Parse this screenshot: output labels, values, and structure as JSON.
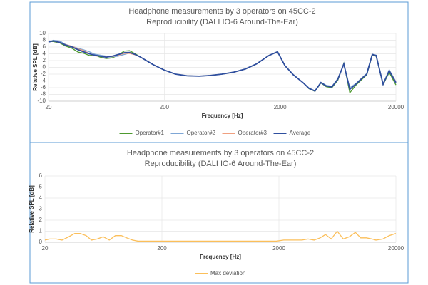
{
  "chart_data": [
    {
      "type": "line",
      "title": "Headphone measurements by 3 operators on 45CC-2",
      "subtitle": "Reproducibility (DALI IO-6 Around-The-Ear)",
      "xlabel": "Frequency [Hz]",
      "ylabel": "Relative SPL [dB]",
      "xscale": "log",
      "grid": true,
      "legend": "bottom",
      "xlim": [
        20,
        20000
      ],
      "xticks": [
        20,
        200,
        2000,
        20000
      ],
      "ylim": [
        -10,
        10
      ],
      "yticks": [
        -10,
        -8,
        -6,
        -4,
        -2,
        0,
        2,
        4,
        6,
        8,
        10
      ],
      "x": [
        20,
        22,
        25,
        28,
        32,
        36,
        40,
        45,
        50,
        56,
        63,
        71,
        80,
        90,
        100,
        112,
        125,
        160,
        200,
        250,
        315,
        400,
        500,
        630,
        800,
        1000,
        1250,
        1600,
        1900,
        2200,
        2600,
        3150,
        3550,
        4000,
        4500,
        5000,
        5600,
        6300,
        7100,
        8000,
        9000,
        10000,
        11200,
        12500,
        13500,
        15500,
        17500,
        20000
      ],
      "series": [
        {
          "name": "Operator#1",
          "color": "#4e9a2f",
          "values": [
            7.6,
            7.6,
            7.2,
            6.3,
            5.6,
            4.5,
            4.2,
            3.5,
            3.6,
            3.0,
            2.6,
            2.8,
            3.6,
            4.8,
            4.9,
            4.0,
            3.0,
            0.8,
            -0.8,
            -2.0,
            -2.5,
            -2.6,
            -2.4,
            -2.0,
            -1.4,
            -0.5,
            1.0,
            3.5,
            4.6,
            0.5,
            -2.2,
            -4.5,
            -6.3,
            -7.1,
            -4.6,
            -5.7,
            -6.0,
            -3.8,
            1.2,
            -7.5,
            -5.3,
            -3.8,
            -2.2,
            3.6,
            3.3,
            -5.1,
            -1.5,
            -5.2
          ]
        },
        {
          "name": "Operator#2",
          "color": "#7fa7d6",
          "values": [
            7.4,
            8.0,
            7.8,
            6.8,
            6.2,
            5.6,
            5.2,
            4.6,
            3.9,
            3.6,
            3.3,
            3.1,
            3.3,
            3.8,
            4.2,
            3.7,
            3.0,
            0.8,
            -0.8,
            -2.0,
            -2.5,
            -2.6,
            -2.4,
            -2.0,
            -1.4,
            -0.5,
            1.0,
            3.5,
            4.6,
            0.5,
            -2.2,
            -4.5,
            -6.1,
            -6.9,
            -4.4,
            -5.3,
            -5.6,
            -3.3,
            0.8,
            -6.0,
            -4.8,
            -3.3,
            -1.8,
            3.9,
            3.6,
            -4.9,
            -0.7,
            -4.2
          ]
        },
        {
          "name": "Operator#3",
          "color": "#f0a080",
          "values": [
            7.5,
            7.8,
            7.3,
            6.7,
            6.2,
            5.4,
            5.0,
            4.1,
            3.4,
            3.3,
            3.1,
            3.2,
            3.6,
            4.1,
            4.1,
            3.7,
            3.0,
            0.8,
            -0.8,
            -2.0,
            -2.5,
            -2.6,
            -2.4,
            -2.0,
            -1.4,
            -0.5,
            1.0,
            3.5,
            4.6,
            0.5,
            -2.2,
            -4.5,
            -6.2,
            -7.0,
            -4.5,
            -5.5,
            -5.8,
            -3.4,
            1.0,
            -6.4,
            -5.0,
            -3.4,
            -2.0,
            3.8,
            3.5,
            -5.0,
            -0.9,
            -4.3
          ]
        },
        {
          "name": "Average",
          "color": "#2f4f9f",
          "values": [
            7.5,
            7.8,
            7.4,
            6.6,
            6.0,
            5.2,
            4.6,
            4.0,
            3.6,
            3.3,
            3.0,
            3.3,
            3.8,
            4.3,
            4.4,
            3.8,
            3.0,
            0.8,
            -0.8,
            -2.0,
            -2.5,
            -2.6,
            -2.4,
            -2.0,
            -1.4,
            -0.5,
            1.0,
            3.5,
            4.6,
            0.5,
            -2.2,
            -4.5,
            -6.2,
            -7.0,
            -4.5,
            -5.5,
            -5.8,
            -3.5,
            1.0,
            -6.5,
            -5.0,
            -3.5,
            -2.0,
            3.8,
            3.5,
            -5.0,
            -1.0,
            -4.5
          ]
        }
      ]
    },
    {
      "type": "line",
      "title": "Headphone measurements by 3 operators on 45CC-2",
      "subtitle": "Reproducibility (DALI IO-6 Around-The-Ear)",
      "xlabel": "Frequency [Hz]",
      "ylabel": "Relative SPL [dB]",
      "xscale": "log",
      "grid": true,
      "legend": "bottom",
      "xlim": [
        20,
        20000
      ],
      "xticks": [
        20,
        200,
        2000,
        20000
      ],
      "ylim": [
        0,
        6
      ],
      "yticks": [
        0,
        1,
        2,
        3,
        4,
        5,
        6
      ],
      "x": [
        20,
        22,
        25,
        28,
        32,
        36,
        40,
        45,
        50,
        56,
        63,
        71,
        80,
        90,
        100,
        112,
        125,
        160,
        200,
        250,
        315,
        400,
        500,
        630,
        800,
        1000,
        1250,
        1600,
        1900,
        2200,
        2600,
        3150,
        3550,
        4000,
        4500,
        5000,
        5600,
        6300,
        7100,
        8000,
        9000,
        10000,
        11200,
        12500,
        13500,
        15500,
        17500,
        20000
      ],
      "series": [
        {
          "name": "Max deviation",
          "color": "#fbbf5a",
          "values": [
            0.2,
            0.3,
            0.3,
            0.2,
            0.5,
            0.8,
            0.8,
            0.6,
            0.2,
            0.3,
            0.5,
            0.2,
            0.6,
            0.6,
            0.4,
            0.2,
            0.1,
            0.1,
            0.1,
            0.1,
            0.1,
            0.1,
            0.1,
            0.1,
            0.1,
            0.1,
            0.1,
            0.1,
            0.1,
            0.2,
            0.2,
            0.2,
            0.3,
            0.2,
            0.4,
            0.7,
            0.3,
            1.0,
            0.3,
            0.5,
            0.9,
            0.4,
            0.4,
            0.3,
            0.2,
            0.3,
            0.6,
            0.8
          ]
        }
      ]
    }
  ]
}
